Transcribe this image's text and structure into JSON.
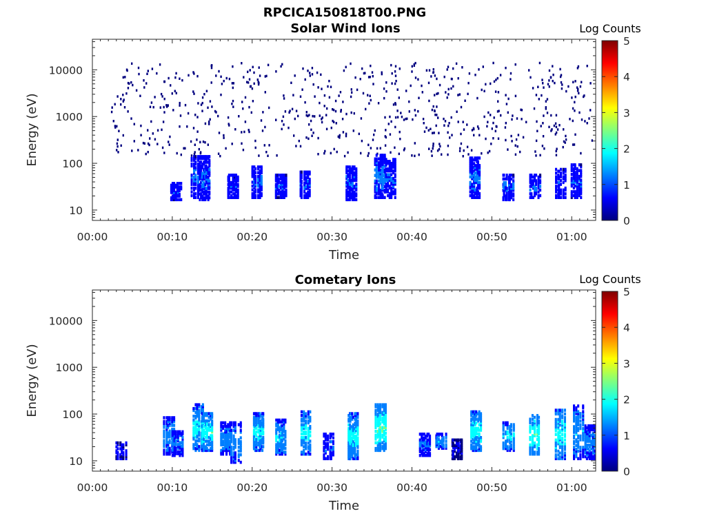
{
  "figure_title": "RPCICA150818T00.PNG",
  "colormap": [
    "#00007f",
    "#0000ff",
    "#007fff",
    "#00ffff",
    "#7fff7f",
    "#ffff00",
    "#ff7f00",
    "#ff0000",
    "#7f0000"
  ],
  "chart_data": [
    {
      "type": "heatmap",
      "title": "Solar Wind Ions",
      "xlabel": "Time",
      "ylabel": "Energy (eV)",
      "x_unit": "minutes after 00:00",
      "xlim": [
        0,
        63
      ],
      "ylim": [
        6,
        45000
      ],
      "yscale": "log",
      "xticks": [
        {
          "value": 0,
          "label": "00:00"
        },
        {
          "value": 10,
          "label": "00:10"
        },
        {
          "value": 20,
          "label": "00:20"
        },
        {
          "value": 30,
          "label": "00:30"
        },
        {
          "value": 40,
          "label": "00:40"
        },
        {
          "value": 50,
          "label": "00:50"
        },
        {
          "value": 60,
          "label": "01:00"
        }
      ],
      "yticks": [
        {
          "value": 10,
          "label": "10"
        },
        {
          "value": 100,
          "label": "100"
        },
        {
          "value": 1000,
          "label": "1000"
        },
        {
          "value": 10000,
          "label": "10000"
        }
      ],
      "colorbar": {
        "label": "Log Counts",
        "min": 0,
        "max": 5,
        "ticks": [
          "0",
          "1",
          "2",
          "3",
          "4",
          "5"
        ]
      },
      "data_start_min": 2.2,
      "scatter_band_eV": [
        150,
        15000
      ],
      "scatter_level": 0.05,
      "bursts": [
        {
          "t": 10.4,
          "e_lo": 18,
          "e_hi": 40,
          "level": 0.9
        },
        {
          "t": 12.9,
          "e_lo": 20,
          "e_hi": 150,
          "level": 1.0
        },
        {
          "t": 14.0,
          "e_lo": 18,
          "e_hi": 150,
          "level": 1.0
        },
        {
          "t": 17.5,
          "e_lo": 20,
          "e_hi": 60,
          "level": 0.8
        },
        {
          "t": 20.5,
          "e_lo": 20,
          "e_hi": 90,
          "level": 1.0
        },
        {
          "t": 23.5,
          "e_lo": 20,
          "e_hi": 60,
          "level": 0.9
        },
        {
          "t": 26.5,
          "e_lo": 20,
          "e_hi": 70,
          "level": 0.9
        },
        {
          "t": 32.3,
          "e_lo": 18,
          "e_hi": 90,
          "level": 1.0
        },
        {
          "t": 35.9,
          "e_lo": 20,
          "e_hi": 160,
          "level": 1.2
        },
        {
          "t": 37.2,
          "e_lo": 20,
          "e_hi": 130,
          "level": 1.0
        },
        {
          "t": 47.8,
          "e_lo": 20,
          "e_hi": 140,
          "level": 1.1
        },
        {
          "t": 51.9,
          "e_lo": 18,
          "e_hi": 60,
          "level": 1.0
        },
        {
          "t": 55.3,
          "e_lo": 20,
          "e_hi": 60,
          "level": 1.0
        },
        {
          "t": 58.5,
          "e_lo": 20,
          "e_hi": 80,
          "level": 0.9
        },
        {
          "t": 60.5,
          "e_lo": 20,
          "e_hi": 100,
          "level": 0.9
        }
      ]
    },
    {
      "type": "heatmap",
      "title": "Cometary Ions",
      "xlabel": "Time",
      "ylabel": "Energy (eV)",
      "x_unit": "minutes after 00:00",
      "xlim": [
        0,
        63
      ],
      "ylim": [
        6,
        45000
      ],
      "yscale": "log",
      "xticks": [
        {
          "value": 0,
          "label": "00:00"
        },
        {
          "value": 10,
          "label": "00:10"
        },
        {
          "value": 20,
          "label": "00:20"
        },
        {
          "value": 30,
          "label": "00:30"
        },
        {
          "value": 40,
          "label": "00:40"
        },
        {
          "value": 50,
          "label": "00:50"
        },
        {
          "value": 60,
          "label": "01:00"
        }
      ],
      "yticks": [
        {
          "value": 10,
          "label": "10"
        },
        {
          "value": 100,
          "label": "100"
        },
        {
          "value": 1000,
          "label": "1000"
        },
        {
          "value": 10000,
          "label": "10000"
        }
      ],
      "colorbar": {
        "label": "Log Counts",
        "min": 0,
        "max": 5,
        "ticks": [
          "0",
          "1",
          "2",
          "3",
          "4",
          "5"
        ]
      },
      "scatter_band_eV": [
        0,
        0
      ],
      "scatter_level": 0,
      "bursts": [
        {
          "t": 3.5,
          "e_lo": 12,
          "e_hi": 26,
          "level": 0.6
        },
        {
          "t": 9.5,
          "e_lo": 15,
          "e_hi": 90,
          "level": 1.3
        },
        {
          "t": 10.6,
          "e_lo": 14,
          "e_hi": 45,
          "level": 1.2
        },
        {
          "t": 13.2,
          "e_lo": 18,
          "e_hi": 170,
          "level": 1.8
        },
        {
          "t": 14.3,
          "e_lo": 18,
          "e_hi": 110,
          "level": 2.0
        },
        {
          "t": 16.6,
          "e_lo": 15,
          "e_hi": 70,
          "level": 1.3
        },
        {
          "t": 17.9,
          "e_lo": 10,
          "e_hi": 70,
          "level": 1.4
        },
        {
          "t": 20.7,
          "e_lo": 18,
          "e_hi": 110,
          "level": 1.8
        },
        {
          "t": 23.5,
          "e_lo": 15,
          "e_hi": 80,
          "level": 1.6
        },
        {
          "t": 26.7,
          "e_lo": 15,
          "e_hi": 120,
          "level": 1.8
        },
        {
          "t": 29.5,
          "e_lo": 12,
          "e_hi": 40,
          "level": 1.0
        },
        {
          "t": 32.5,
          "e_lo": 12,
          "e_hi": 110,
          "level": 1.9
        },
        {
          "t": 36.0,
          "e_lo": 18,
          "e_hi": 170,
          "level": 2.2
        },
        {
          "t": 41.5,
          "e_lo": 14,
          "e_hi": 40,
          "level": 1.0
        },
        {
          "t": 43.5,
          "e_lo": 20,
          "e_hi": 40,
          "level": 1.4
        },
        {
          "t": 45.5,
          "e_lo": 12,
          "e_hi": 30,
          "level": 0.4
        },
        {
          "t": 47.9,
          "e_lo": 18,
          "e_hi": 120,
          "level": 1.9
        },
        {
          "t": 52.0,
          "e_lo": 18,
          "e_hi": 70,
          "level": 1.8
        },
        {
          "t": 55.3,
          "e_lo": 15,
          "e_hi": 100,
          "level": 2.2
        },
        {
          "t": 58.5,
          "e_lo": 12,
          "e_hi": 130,
          "level": 1.9
        },
        {
          "t": 60.8,
          "e_lo": 12,
          "e_hi": 160,
          "level": 1.5
        },
        {
          "t": 62.2,
          "e_lo": 12,
          "e_hi": 60,
          "level": 1.3
        }
      ]
    }
  ]
}
